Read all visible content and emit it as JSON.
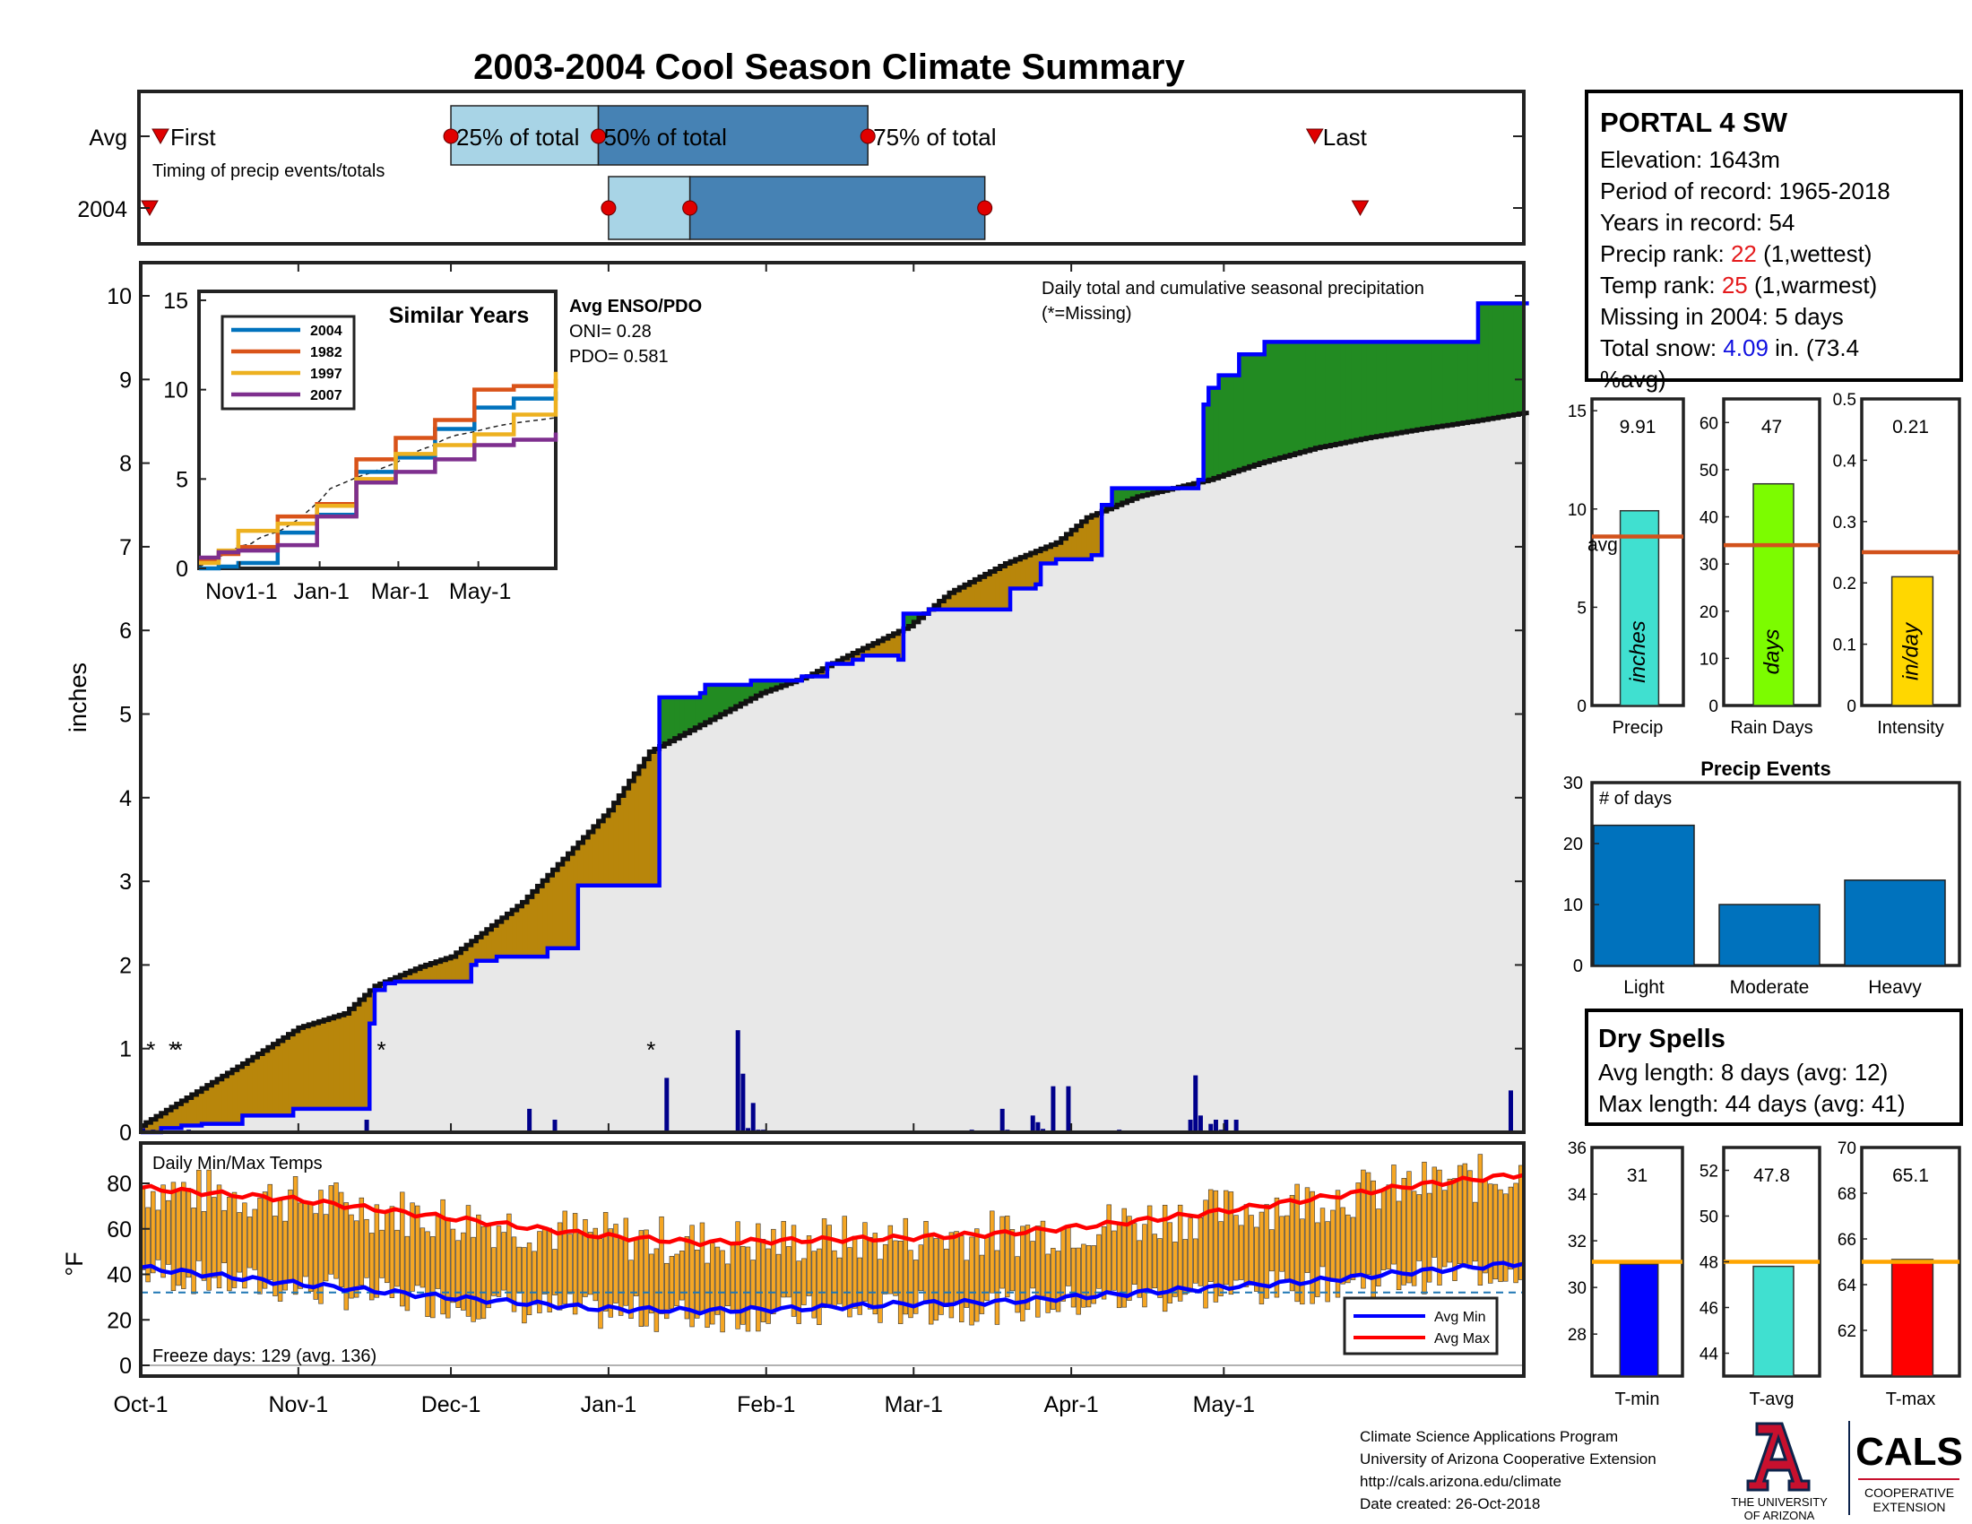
{
  "title": "2003-2004 Cool Season Climate Summary",
  "timing": {
    "row_labels": [
      "Avg",
      "2004"
    ],
    "avg_labels": {
      "first": "First",
      "p25": "25% of total",
      "p50": "50% of total",
      "p75": "75% of total",
      "last": "Last"
    },
    "caption": "Timing of precip events/totals",
    "avg_markers": {
      "first": "Oct-4",
      "p25": "Dec-1",
      "p50": "Dec-30",
      "p75": "Feb-21",
      "last": "May-18"
    },
    "y2004_markers": {
      "first": "Oct-1",
      "p25": "Jan-1",
      "p50": "Jan-17",
      "p75": "Mar-15",
      "last": "May-31"
    }
  },
  "station": {
    "name": "PORTAL 4 SW",
    "elevation": "Elevation: 1643m",
    "period": "Period of record: 1965-2018",
    "years": "Years in record: 54",
    "precip_rank_label": "Precip rank: ",
    "precip_rank": "22",
    "precip_rank_note": " (1,wettest)",
    "temp_rank_label": "Temp rank: ",
    "temp_rank": "25",
    "temp_rank_note": " (1,warmest)",
    "missing": "Missing in 2004: 5 days",
    "snow_label": "Total snow: ",
    "snow_value": "4.09",
    "snow_note": " in. (73.4",
    "snow_note2": "%avg)"
  },
  "main_chart": {
    "ylabel": "inches",
    "yticks": [
      "0",
      "1",
      "2",
      "3",
      "4",
      "5",
      "6",
      "7",
      "8",
      "9",
      "10"
    ],
    "xticks": [
      "Oct-1",
      "Nov-1",
      "Dec-1",
      "Jan-1",
      "Feb-1",
      "Mar-1",
      "Apr-1",
      "May-1"
    ],
    "note": "Daily total and cumulative seasonal precipitation",
    "missing_note": "(*=Missing)",
    "enso_title": "Avg ENSO/PDO",
    "oni": "ONI= 0.28",
    "pdo": "PDO= 0.581",
    "missing_marker": "*"
  },
  "similar_years": {
    "title": "Similar Years",
    "yticks": [
      "0",
      "5",
      "10",
      "15"
    ],
    "xticks": [
      "Nov1-1",
      "Jan-1",
      "Mar-1",
      "May-1"
    ],
    "legend": [
      "2004",
      "1982",
      "1997",
      "2007"
    ]
  },
  "temps": {
    "title": "Daily Min/Max Temps",
    "ylabel": "°F",
    "yticks": [
      "0",
      "20",
      "40",
      "60",
      "80"
    ],
    "freeze": "Freeze days: 129 (avg. 136)",
    "legend": [
      "Avg Min",
      "Avg Max"
    ]
  },
  "summary_bars": [
    {
      "label": "Precip",
      "value_text": "9.91",
      "unit": "inches",
      "avg_label": "avg",
      "yticks": [
        "0",
        "5",
        "10",
        "15"
      ]
    },
    {
      "label": "Rain Days",
      "value_text": "47",
      "unit": "days",
      "yticks": [
        "0",
        "10",
        "20",
        "30",
        "40",
        "50",
        "60"
      ]
    },
    {
      "label": "Intensity",
      "value_text": "0.21",
      "unit": "in/day",
      "yticks": [
        "0",
        "0.1",
        "0.2",
        "0.3",
        "0.4",
        "0.5"
      ]
    }
  ],
  "precip_events": {
    "title": "Precip Events",
    "subtitle": "# of days",
    "yticks": [
      "0",
      "10",
      "20",
      "30"
    ]
  },
  "dry_spells": {
    "title": "Dry Spells",
    "avg": "Avg length: 8 days (avg: 12)",
    "max": "Max length: 44 days (avg: 41)"
  },
  "temp_bars": [
    {
      "label": "T-min",
      "value_text": "31",
      "yticks": [
        "28",
        "30",
        "32",
        "34",
        "36"
      ]
    },
    {
      "label": "T-avg",
      "value_text": "47.8",
      "yticks": [
        "44",
        "46",
        "48",
        "50",
        "52"
      ]
    },
    {
      "label": "T-max",
      "value_text": "65.1",
      "yticks": [
        "62",
        "64",
        "66",
        "68",
        "70"
      ]
    }
  ],
  "footer": {
    "line1": "Climate Science Applications Program",
    "line2": "University of Arizona Cooperative Extension",
    "line3": "http://cals.arizona.edu/climate",
    "line4": " Date created: 26-Oct-2018",
    "ua1": "THE UNIVERSITY",
    "ua2": "OF ARIZONA",
    "cals": "CALS",
    "coop1": "COOPERATIVE",
    "coop2": "EXTENSION"
  },
  "colors": {
    "title": "#0b4f96",
    "obs": "#0000ff",
    "avg_fill": "#e8e8e8",
    "deficit": "#b8860b",
    "surplus": "#228b22",
    "precip_bar": "#00008b",
    "temp_bar": "#f5a623",
    "avg_max": "#ff0000",
    "avg_min": "#0000ff",
    "avg_line": "#d2521c",
    "precip_sum": "#40e0d0",
    "raindays": "#7cfc00",
    "intensity": "#ffd700",
    "events": "#0072bd",
    "dry": "#8b4513",
    "tmin": "#0000ff",
    "tavg": "#40e0d0",
    "tmax": "#ff0000"
  },
  "chart_data": [
    {
      "type": "area",
      "title": "Daily total and cumulative seasonal precipitation",
      "ylabel": "inches",
      "ylim": [
        0,
        10.5
      ],
      "xlim": [
        "Oct-1",
        "May-31"
      ],
      "series": [
        {
          "name": "avg",
          "x": [
            0,
            10,
            20,
            31,
            40,
            46,
            55,
            61,
            75,
            92,
            100,
            111,
            122,
            131,
            139,
            151,
            159,
            170,
            180,
            186,
            196,
            210,
            220,
            231,
            241,
            251,
            262,
            272
          ],
          "y": [
            0.08,
            0.45,
            0.82,
            1.25,
            1.42,
            1.75,
            1.98,
            2.1,
            2.75,
            3.85,
            4.55,
            4.9,
            5.25,
            5.45,
            5.7,
            6.05,
            6.45,
            6.8,
            7.05,
            7.35,
            7.6,
            7.8,
            8.0,
            8.18,
            8.3,
            8.4,
            8.5,
            8.6
          ]
        },
        {
          "name": "2004",
          "x": [
            0,
            4,
            8,
            12,
            20,
            30,
            44,
            45,
            46,
            48,
            50,
            60,
            65,
            66,
            70,
            80,
            85,
            86,
            90,
            100,
            102,
            110,
            111,
            120,
            130,
            135,
            140,
            142,
            149,
            150,
            151,
            155,
            160,
            170,
            171,
            176,
            177,
            180,
            187,
            189,
            190,
            191,
            208,
            209,
            210,
            212,
            214,
            216,
            220,
            221,
            244,
            245,
            262,
            263,
            272
          ],
          "y": [
            0,
            0.05,
            0.08,
            0.1,
            0.2,
            0.28,
            0.28,
            1.3,
            1.7,
            1.78,
            1.8,
            1.8,
            2.0,
            2.05,
            2.1,
            2.2,
            2.2,
            2.95,
            2.95,
            2.95,
            5.2,
            5.25,
            5.35,
            5.4,
            5.45,
            5.6,
            5.65,
            5.7,
            5.65,
            6.2,
            6.2,
            6.25,
            6.25,
            6.25,
            6.5,
            6.55,
            6.8,
            6.85,
            6.9,
            7.5,
            7.5,
            7.7,
            7.8,
            8.7,
            8.9,
            9.05,
            9.05,
            9.3,
            9.3,
            9.45,
            9.45,
            9.45,
            9.45,
            9.91,
            9.91
          ]
        }
      ]
    },
    {
      "type": "bar",
      "title": "daily precip 2004",
      "ylabel": "inches",
      "x": [
        0,
        2,
        5,
        9,
        44,
        76,
        81,
        103,
        117,
        118,
        119,
        120,
        121,
        122,
        151,
        163,
        169,
        170,
        171,
        175,
        176,
        177,
        179,
        182,
        188,
        192,
        206,
        207,
        208,
        212,
        211,
        210,
        213,
        215,
        269
      ],
      "y": [
        0.05,
        0.03,
        0.02,
        0.03,
        0.15,
        0.28,
        0.15,
        0.65,
        1.22,
        0.7,
        0.05,
        0.35,
        0.03,
        0.03,
        0.02,
        0.03,
        0.28,
        0.03,
        0.02,
        0.2,
        0.12,
        0.04,
        0.55,
        0.55,
        0.02,
        0.03,
        0.15,
        0.68,
        0.2,
        0.03,
        0.15,
        0.1,
        0.15,
        0.15,
        0.5
      ]
    },
    {
      "type": "line",
      "title": "Similar Years",
      "xticks": [
        "Nov1-1",
        "Jan-1",
        "Mar-1",
        "May-1"
      ],
      "ylim": [
        0,
        15
      ],
      "series": [
        {
          "name": "2004",
          "x": [
            0,
            15,
            30,
            60,
            90,
            120,
            150,
            180,
            210,
            240,
            272
          ],
          "y": [
            0,
            0.1,
            0.3,
            2.0,
            3.0,
            5.4,
            6.2,
            7.8,
            9.0,
            9.5,
            9.9
          ]
        },
        {
          "name": "1982",
          "x": [
            0,
            15,
            30,
            60,
            90,
            120,
            150,
            180,
            210,
            240,
            272
          ],
          "y": [
            0.5,
            0.8,
            1.2,
            2.9,
            3.6,
            6.1,
            7.3,
            8.3,
            10.0,
            10.2,
            10.6
          ]
        },
        {
          "name": "1997",
          "x": [
            0,
            15,
            30,
            60,
            90,
            120,
            150,
            180,
            210,
            240,
            272
          ],
          "y": [
            0.3,
            1.0,
            2.1,
            2.5,
            3.5,
            5.0,
            6.4,
            6.9,
            7.5,
            8.6,
            11.0
          ]
        },
        {
          "name": "1982",
          "x": [],
          "y": []
        },
        {
          "name": "2007",
          "x": [
            0,
            15,
            30,
            60,
            90,
            120,
            150,
            180,
            210,
            240,
            272
          ],
          "y": [
            0.6,
            0.9,
            1.0,
            1.3,
            2.9,
            4.8,
            5.4,
            6.1,
            6.9,
            7.2,
            7.6
          ]
        }
      ]
    },
    {
      "type": "line",
      "title": "Daily Min/Max Temps",
      "ylabel": "°F",
      "ylim": [
        0,
        90
      ],
      "series": [
        {
          "name": "Avg Max",
          "x": [
            0,
            30,
            60,
            90,
            110,
            130,
            150,
            170,
            190,
            210,
            230,
            250,
            272
          ],
          "y": [
            78,
            73,
            65,
            57,
            54,
            55,
            56,
            58,
            62,
            67,
            73,
            79,
            84
          ]
        },
        {
          "name": "Avg Min",
          "x": [
            0,
            30,
            60,
            90,
            110,
            130,
            150,
            170,
            190,
            210,
            230,
            250,
            272
          ],
          "y": [
            43,
            36,
            30,
            25,
            24,
            25,
            27,
            28,
            31,
            34,
            37,
            41,
            45
          ]
        }
      ]
    },
    {
      "type": "bar",
      "title": "Precip",
      "categories": [
        "Precip"
      ],
      "values": [
        9.91
      ],
      "ylim": [
        0,
        15
      ],
      "avg": 8.6
    },
    {
      "type": "bar",
      "title": "Rain Days",
      "categories": [
        "Rain Days"
      ],
      "values": [
        47
      ],
      "ylim": [
        0,
        60
      ],
      "avg": 34
    },
    {
      "type": "bar",
      "title": "Intensity",
      "categories": [
        "Intensity"
      ],
      "values": [
        0.21
      ],
      "ylim": [
        0,
        0.5
      ],
      "avg": 0.25
    },
    {
      "type": "bar",
      "title": "Precip Events",
      "categories": [
        "Light",
        "Moderate",
        "Heavy"
      ],
      "values": [
        23,
        10,
        14
      ],
      "ylim": [
        0,
        30
      ]
    },
    {
      "type": "bar",
      "title": "T-min",
      "categories": [
        "T-min"
      ],
      "values": [
        31
      ],
      "ylim": [
        26,
        36
      ],
      "avg": 31
    },
    {
      "type": "bar",
      "title": "T-avg",
      "categories": [
        "T-avg"
      ],
      "values": [
        47.8
      ],
      "ylim": [
        43,
        53
      ],
      "avg": 48
    },
    {
      "type": "bar",
      "title": "T-max",
      "categories": [
        "T-max"
      ],
      "values": [
        65.1
      ],
      "ylim": [
        60,
        70
      ],
      "avg": 65
    }
  ]
}
